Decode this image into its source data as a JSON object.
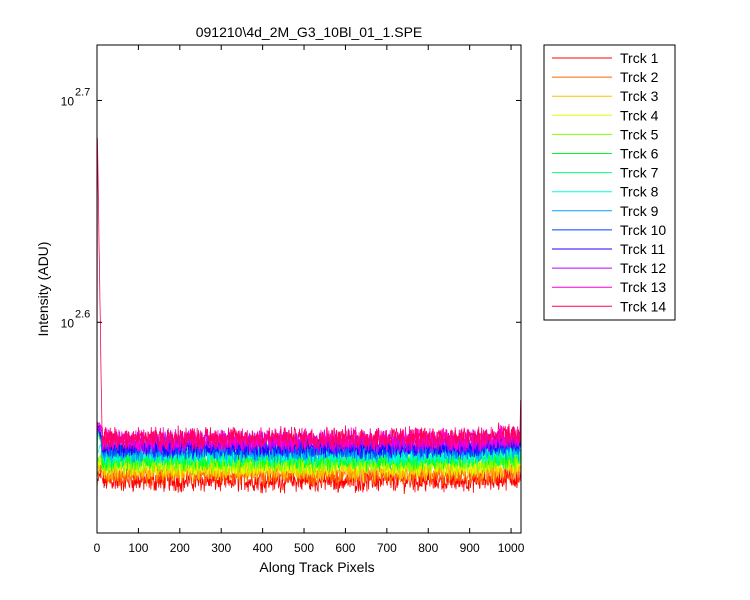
{
  "chart_data": {
    "type": "line",
    "title": "091210\\4d_2M_G3_10Bl_01_1.SPE",
    "xlabel": "Along Track Pixels",
    "ylabel": "Intensity (ADU)",
    "xlim": [
      0,
      1024
    ],
    "y_scale": "log10",
    "ylim": [
      2.505,
      2.725
    ],
    "x_ticks": [
      0,
      100,
      200,
      300,
      400,
      500,
      600,
      700,
      800,
      900,
      1000
    ],
    "y_ticks": [
      {
        "base": "10",
        "exp": "2.7",
        "value": 2.7
      },
      {
        "base": "10",
        "exp": "2.6",
        "value": 2.6
      }
    ],
    "legend_position": "outside-right",
    "noise_amplitude_log10": 0.004,
    "series": [
      {
        "name": "Trck 1",
        "color": "#ff0000",
        "level": 2.5285,
        "start": 2.5245,
        "spike": 2.5285,
        "end": 2.5285
      },
      {
        "name": "Trck 2",
        "color": "#ff6000",
        "level": 2.5315,
        "start": 2.5295,
        "spike": 2.5315,
        "end": 2.5315
      },
      {
        "name": "Trck 3",
        "color": "#ffc000",
        "level": 2.5335,
        "start": 2.5335,
        "spike": 2.5335,
        "end": 2.5335
      },
      {
        "name": "Trck 4",
        "color": "#ddff00",
        "level": 2.5355,
        "start": 2.5355,
        "spike": 2.5355,
        "end": 2.5355
      },
      {
        "name": "Trck 5",
        "color": "#7fff00",
        "level": 2.537,
        "start": 2.537,
        "spike": 2.537,
        "end": 2.537
      },
      {
        "name": "Trck 6",
        "color": "#00ff20",
        "level": 2.5385,
        "start": 2.508,
        "spike": 2.554,
        "end": 2.5385
      },
      {
        "name": "Trck 7",
        "color": "#00ff80",
        "level": 2.54,
        "start": 2.54,
        "spike": 2.554,
        "end": 2.54
      },
      {
        "name": "Trck 8",
        "color": "#00ffe0",
        "level": 2.541,
        "start": 2.541,
        "spike": 2.541,
        "end": 2.541
      },
      {
        "name": "Trck 9",
        "color": "#00a0ff",
        "level": 2.542,
        "start": 2.518,
        "spike": 2.554,
        "end": 2.542
      },
      {
        "name": "Trck 10",
        "color": "#0040ff",
        "level": 2.5435,
        "start": 2.5435,
        "spike": 2.554,
        "end": 2.5435
      },
      {
        "name": "Trck 11",
        "color": "#2000ff",
        "level": 2.5445,
        "start": 2.5445,
        "spike": 2.554,
        "end": 2.5445
      },
      {
        "name": "Trck 12",
        "color": "#c000ff",
        "level": 2.546,
        "start": 2.546,
        "spike": 2.554,
        "end": 2.546
      },
      {
        "name": "Trck 13",
        "color": "#ff00d0",
        "level": 2.547,
        "start": 2.547,
        "spike": 2.554,
        "end": 2.547
      },
      {
        "name": "Trck 14",
        "color": "#ff0060",
        "level": 2.548,
        "start": 2.548,
        "spike": 2.683,
        "end": 2.565
      }
    ]
  }
}
